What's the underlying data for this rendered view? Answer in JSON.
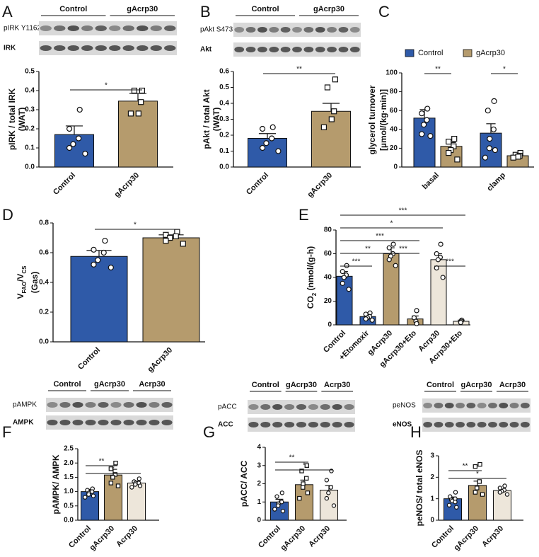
{
  "chart_data": [
    {
      "type": "bar",
      "panel": "A",
      "blot_groups": [
        "Control",
        "gAcrp30"
      ],
      "blot_rows": [
        "pIRK Y1162",
        "IRK"
      ],
      "ylabel": [
        "pIRK / total IRK",
        "(WAT)"
      ],
      "categories": [
        "Control",
        "gAcrp30"
      ],
      "values": [
        0.17,
        0.345
      ],
      "errors": [
        0.045,
        0.04
      ],
      "colors": [
        "#2f5aa8",
        "#b59b6d"
      ],
      "markers": [
        "circle",
        "square"
      ],
      "points": [
        [
          0.3,
          0.2,
          0.15,
          0.12,
          0.1,
          0.07
        ],
        [
          0.4,
          0.4,
          0.34,
          0.28,
          0.28
        ]
      ],
      "ylim": [
        0,
        0.5
      ],
      "yticks": [
        {
          "value": 0,
          "label": "0.0"
        },
        0.1,
        0.2,
        0.3,
        0.4,
        0.5
      ],
      "significance": [
        {
          "text": "*",
          "from": 0,
          "to": 1
        }
      ]
    },
    {
      "type": "bar",
      "panel": "B",
      "blot_groups": [
        "Control",
        "gAcrp30"
      ],
      "blot_rows": [
        "pAkt S473",
        "Akt"
      ],
      "ylabel": [
        "pAkt / total Akt",
        "(WAT)"
      ],
      "categories": [
        "Control",
        "gAcrp30"
      ],
      "values": [
        0.18,
        0.35
      ],
      "errors": [
        0.03,
        0.05
      ],
      "colors": [
        "#2f5aa8",
        "#b59b6d"
      ],
      "markers": [
        "circle",
        "square"
      ],
      "points": [
        [
          0.25,
          0.24,
          0.18,
          0.15,
          0.12,
          0.1
        ],
        [
          0.55,
          0.5,
          0.35,
          0.3,
          0.25
        ]
      ],
      "ylim": [
        0,
        0.6
      ],
      "yticks": [
        {
          "value": 0,
          "label": "0.0"
        },
        0.1,
        0.2,
        0.3,
        0.4,
        0.5,
        0.6
      ],
      "significance": [
        {
          "text": "**",
          "from": 0,
          "to": 1
        }
      ]
    },
    {
      "type": "grouped_bar",
      "panel": "C",
      "ylabel": [
        "glycerol turnover",
        "[µmol/(kg·min)]"
      ],
      "categories": [
        "basal",
        "clamp"
      ],
      "series": [
        {
          "name": "Control",
          "color": "#2f5aa8",
          "marker": "circle",
          "values": [
            52,
            36
          ],
          "errors": [
            9,
            10
          ],
          "points": [
            [
              62,
              57,
              50,
              45,
              35,
              33
            ],
            [
              70,
              60,
              40,
              30,
              20,
              18,
              10
            ]
          ]
        },
        {
          "name": "gAcrp30",
          "color": "#b59b6d",
          "marker": "square",
          "values": [
            22,
            12
          ],
          "errors": [
            4,
            2
          ],
          "points": [
            [
              30,
              27,
              22,
              18,
              15,
              8
            ],
            [
              15,
              13,
              12,
              11,
              10
            ]
          ]
        }
      ],
      "ylim": [
        0,
        100
      ],
      "yticks": [
        0,
        20,
        40,
        60,
        80,
        100
      ],
      "significance": [
        {
          "text": "**",
          "category": 0
        },
        {
          "text": "*",
          "category": 1
        }
      ]
    },
    {
      "type": "bar",
      "panel": "D",
      "ylabel": [
        [
          "V",
          "FAO",
          "/V",
          "CS"
        ],
        "(Gas)"
      ],
      "categories": [
        "Control",
        "gAcrp30"
      ],
      "values": [
        0.575,
        0.7
      ],
      "errors": [
        0.04,
        0.02
      ],
      "colors": [
        "#2f5aa8",
        "#b59b6d"
      ],
      "markers": [
        "circle",
        "square"
      ],
      "points": [
        [
          0.68,
          0.62,
          0.6,
          0.55,
          0.52,
          0.5
        ],
        [
          0.74,
          0.72,
          0.71,
          0.7,
          0.68,
          0.66
        ]
      ],
      "ylim": [
        0,
        0.8
      ],
      "yticks": [
        {
          "value": 0,
          "label": "0.0"
        },
        0.2,
        0.4,
        0.6,
        0.8
      ],
      "significance": [
        {
          "text": "*",
          "from": 0,
          "to": 1
        }
      ]
    },
    {
      "type": "bar",
      "panel": "E",
      "ylabel": [
        [
          "CO",
          "2",
          " (nmol/(g-h)"
        ]
      ],
      "categories": [
        "Control",
        "+Etomoxir",
        "gAcrp30",
        "gAcrp30+Eto",
        "Acrp30",
        "Acrp30+Eto"
      ],
      "values": [
        41,
        7,
        60,
        5,
        55,
        3
      ],
      "errors": [
        4,
        1.5,
        5,
        2.5,
        5,
        1
      ],
      "colors": [
        "#2f5aa8",
        "#2f5aa8",
        "#b59b6d",
        "#b59b6d",
        "#ede6da",
        "#ede6da"
      ],
      "markers": [
        "circle",
        "circle",
        "circle",
        "circle",
        "circle",
        "circle"
      ],
      "points": [
        [
          50,
          45,
          42,
          40,
          35,
          30
        ],
        [
          10,
          9,
          7,
          6,
          5,
          4
        ],
        [
          68,
          65,
          60,
          58,
          55,
          50
        ],
        [
          12,
          6,
          3,
          1
        ],
        [
          68,
          60,
          57,
          55,
          48,
          40
        ],
        [
          4,
          3,
          2
        ]
      ],
      "ylim": [
        0,
        80
      ],
      "yticks": [
        0,
        20,
        40,
        60,
        80
      ],
      "significance": [
        {
          "text": "***",
          "from": 0,
          "to": 5
        },
        {
          "text": "*",
          "from": 0,
          "to": 4
        },
        {
          "text": "***",
          "from": 0,
          "to": 3
        },
        {
          "text": "**",
          "from": 0,
          "to": 2
        },
        {
          "text": "***",
          "from": 2,
          "to": 3
        },
        {
          "text": "***",
          "from": 0,
          "to": 1
        },
        {
          "text": "***",
          "from": 4,
          "to": 5
        }
      ]
    },
    {
      "type": "bar",
      "panel": "F",
      "blot_groups": [
        "Control",
        "gAcrp30",
        "Acrp30"
      ],
      "blot_rows": [
        "pAMPK",
        "AMPK"
      ],
      "ylabel": [
        "pAMPK/ AMPK"
      ],
      "categories": [
        "Control",
        "gAcrp30",
        "Acrp30"
      ],
      "values": [
        1.0,
        1.58,
        1.3
      ],
      "errors": [
        0.08,
        0.2,
        0.07
      ],
      "colors": [
        "#2f5aa8",
        "#b59b6d",
        "#ede6da"
      ],
      "markers": [
        "circle",
        "square",
        "circle"
      ],
      "points": [
        [
          1.1,
          1.05,
          1.0,
          0.95,
          0.9,
          0.85,
          0.8
        ],
        [
          2.0,
          1.8,
          1.6,
          1.5,
          1.3,
          1.2
        ],
        [
          1.45,
          1.35,
          1.3,
          1.3,
          1.25,
          1.2,
          1.15
        ]
      ],
      "ylim": [
        0,
        2.5
      ],
      "yticks": [
        {
          "value": 0,
          "label": "0.0"
        },
        0.5,
        {
          "value": 1,
          "label": "1.0"
        },
        1.5,
        {
          "value": 2,
          "label": "2.0"
        },
        2.5
      ],
      "significance": [
        {
          "text": "**",
          "from": 0,
          "to": 1
        },
        {
          "text": "*",
          "from": 0,
          "to": 2
        }
      ]
    },
    {
      "type": "bar",
      "panel": "G",
      "blot_groups": [
        "Control",
        "gAcrp30",
        "Acrp30"
      ],
      "blot_rows": [
        "pACC",
        "ACC"
      ],
      "ylabel": [
        "pACC/ ACC"
      ],
      "categories": [
        "Control",
        "gAcrp30",
        "Acrp30"
      ],
      "values": [
        1.0,
        1.95,
        1.65
      ],
      "errors": [
        0.15,
        0.25,
        0.25
      ],
      "colors": [
        "#2f5aa8",
        "#b59b6d",
        "#ede6da"
      ],
      "markers": [
        "circle",
        "square",
        "circle"
      ],
      "points": [
        [
          1.5,
          1.3,
          1.0,
          0.9,
          0.8,
          0.5,
          0.6
        ],
        [
          3.0,
          2.7,
          2.3,
          2.0,
          1.8,
          1.5,
          1.2
        ],
        [
          2.7,
          2.2,
          1.8,
          1.5,
          1.2,
          0.8
        ]
      ],
      "ylim": [
        0,
        4
      ],
      "yticks": [
        0,
        1,
        2,
        3,
        4
      ],
      "significance": [
        {
          "text": "**",
          "from": 0,
          "to": 1
        },
        {
          "text": "*",
          "from": 0,
          "to": 2
        }
      ]
    },
    {
      "type": "bar",
      "panel": "H",
      "blot_groups": [
        "Control",
        "gAcrp30",
        "Acrp30"
      ],
      "blot_rows": [
        "peNOS",
        "eNOS"
      ],
      "ylabel": [
        "peNOS/ total eNOS"
      ],
      "categories": [
        "Control",
        "gAcrp30",
        "Acrp30"
      ],
      "values": [
        1.0,
        1.62,
        1.38
      ],
      "errors": [
        0.08,
        0.2,
        0.06
      ],
      "colors": [
        "#2f5aa8",
        "#b59b6d",
        "#ede6da"
      ],
      "markers": [
        "circle",
        "square",
        "circle"
      ],
      "points": [
        [
          1.3,
          1.1,
          1.0,
          0.95,
          0.9,
          0.85,
          0.7,
          0.6
        ],
        [
          2.6,
          2.5,
          1.8,
          1.5,
          1.3,
          1.2
        ],
        [
          1.6,
          1.5,
          1.4,
          1.35,
          1.3,
          1.2
        ]
      ],
      "ylim": [
        0,
        3
      ],
      "yticks": [
        0,
        1,
        2,
        3
      ],
      "significance": [
        {
          "text": "**",
          "from": 0,
          "to": 1
        },
        {
          "text": "*",
          "from": 0,
          "to": 2
        }
      ]
    }
  ]
}
